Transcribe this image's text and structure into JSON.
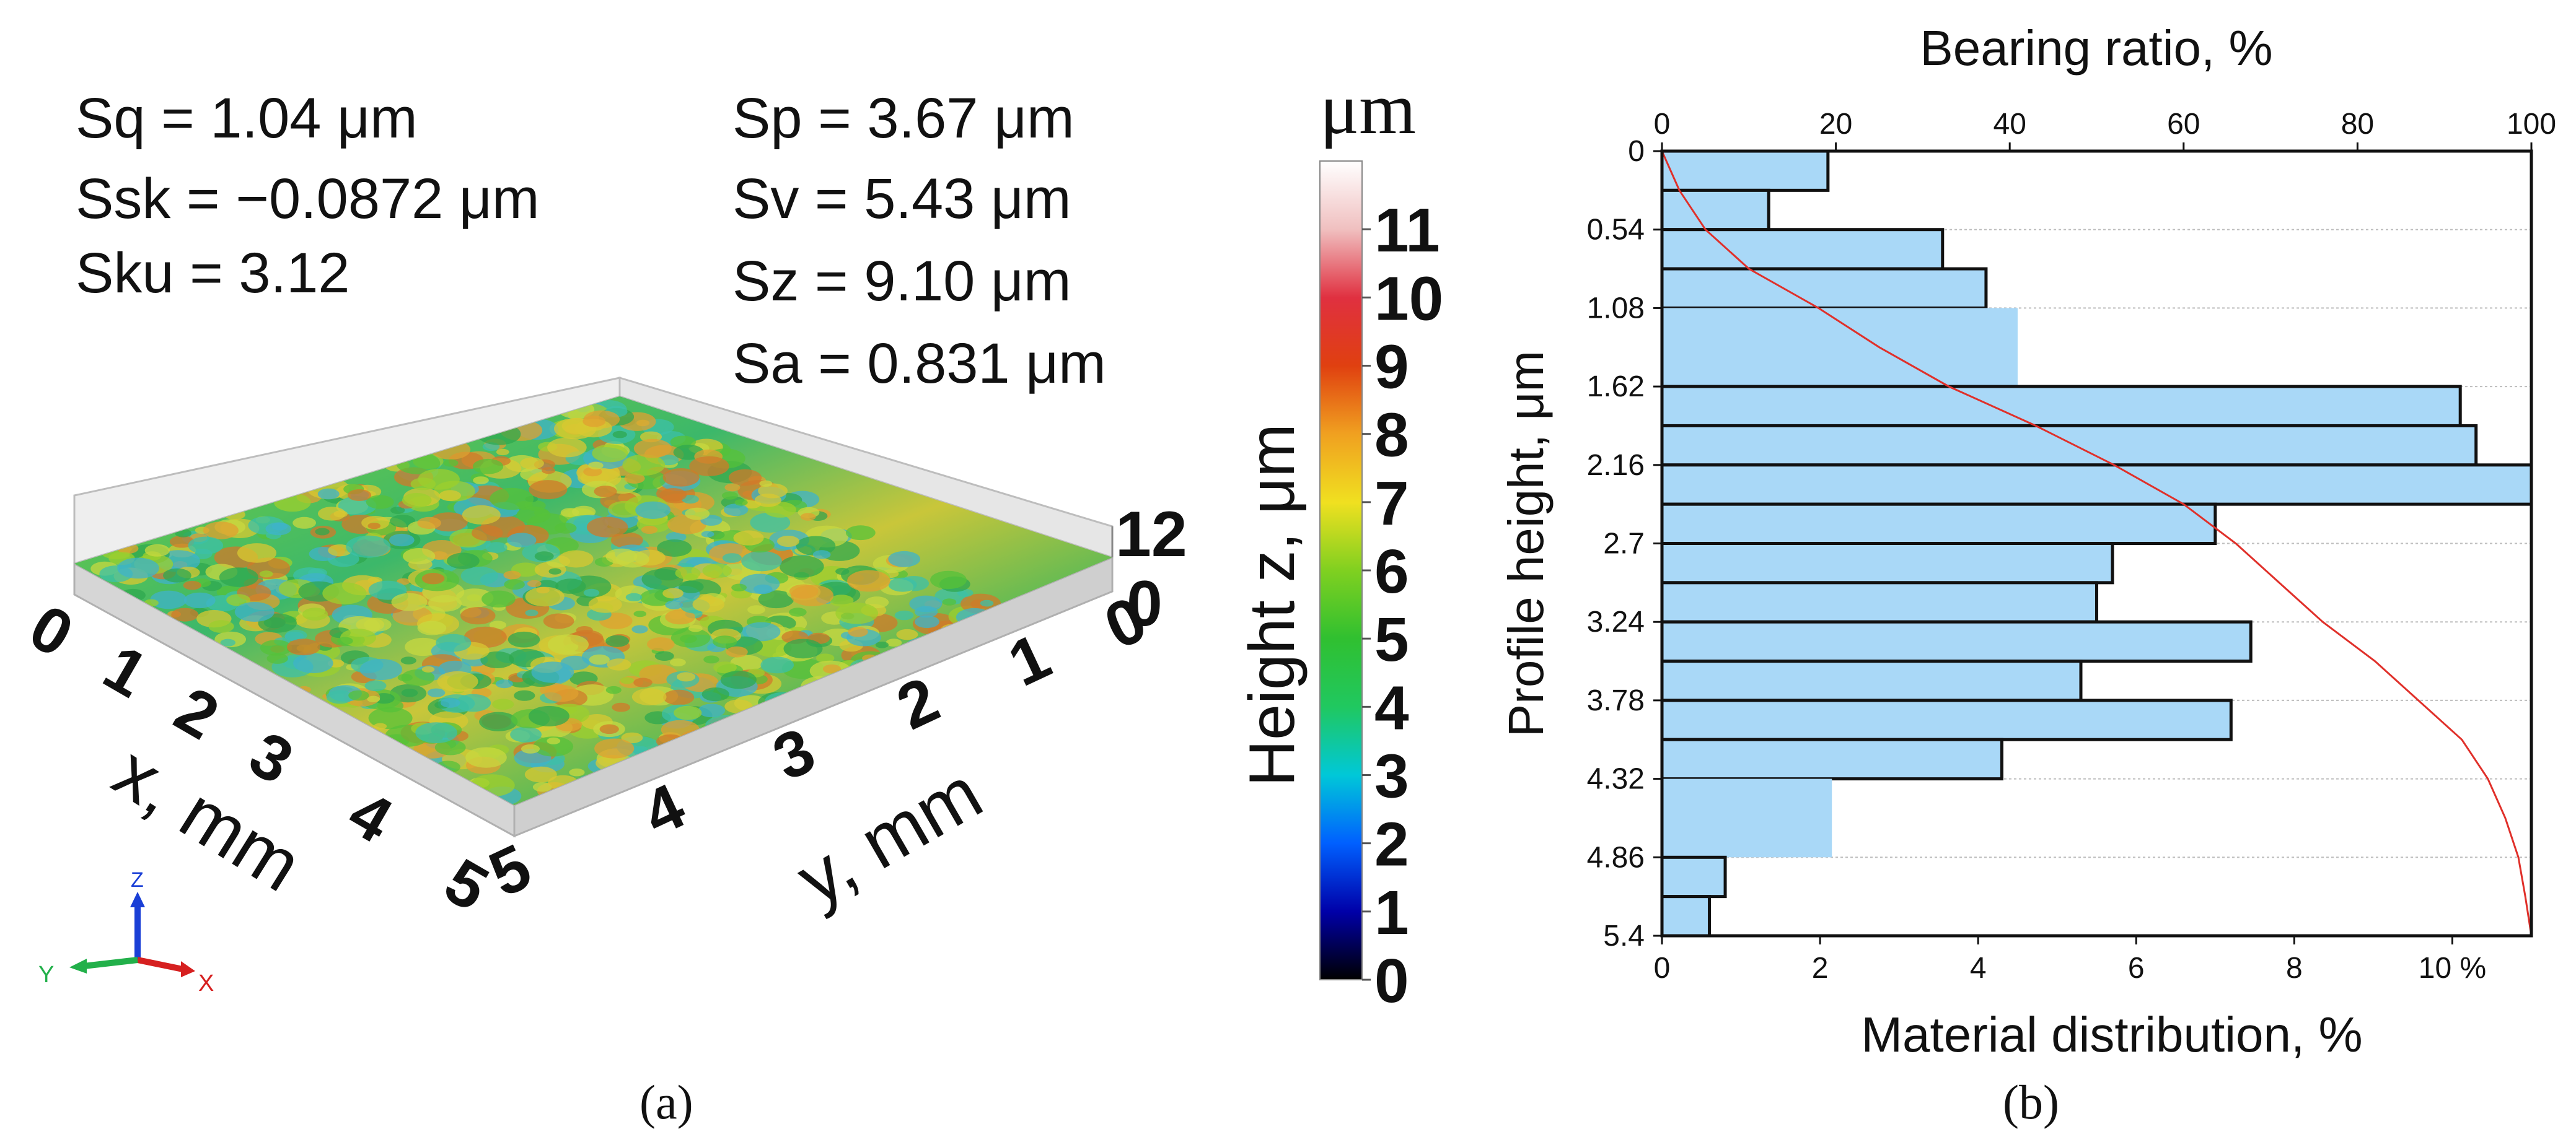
{
  "panel_a": {
    "stats_left": [
      "Sq = 1.04 μm",
      "Ssk = −0.0872 μm",
      "Sku = 3.12"
    ],
    "stats_right": [
      "Sp = 3.67 μm",
      "Sv = 5.43 μm",
      "Sz = 9.10 μm",
      "Sa = 0.831 μm"
    ],
    "colorbar": {
      "unit": "μm",
      "label": "Height z, μm",
      "ticks": [
        "0",
        "1",
        "2",
        "3",
        "4",
        "5",
        "6",
        "7",
        "8",
        "9",
        "10",
        "11"
      ],
      "colors": [
        "#000000",
        "#0000a8",
        "#0060ff",
        "#00c8d8",
        "#20c860",
        "#30c030",
        "#80d020",
        "#f0e020",
        "#f0a020",
        "#e04010",
        "#e03040",
        "#f0c0c0",
        "#ffffff"
      ]
    },
    "x_axis": {
      "label": "x, mm",
      "ticks": [
        "0",
        "1",
        "2",
        "3",
        "4",
        "5"
      ]
    },
    "y_axis": {
      "label": "y, mm",
      "ticks": [
        "5",
        "4",
        "3",
        "2",
        "1",
        "0"
      ]
    },
    "z_axis": {
      "ticks": [
        "12",
        "0"
      ]
    },
    "triad": {
      "z": "Z",
      "y": "Y",
      "x": "X"
    },
    "caption": "(a)"
  },
  "chart_data": {
    "type": "bar",
    "orientation": "horizontal",
    "title": "Bearing ratio, %",
    "xlabel": "Material distribution, %",
    "ylabel": "Profile height, μm",
    "bottom_ticks": [
      "0",
      "2",
      "4",
      "6",
      "8",
      "10 %"
    ],
    "top_ticks": [
      "0",
      "20",
      "40",
      "60",
      "80",
      "100"
    ],
    "y_ticks": [
      "0",
      "0.54",
      "1.08",
      "1.62",
      "2.16",
      "2.7",
      "3.24",
      "3.78",
      "4.32",
      "4.86",
      "5.4"
    ],
    "xlim": [
      0,
      11
    ],
    "ylim": [
      0,
      5.4
    ],
    "bin_width": 0.27,
    "bins_start": [
      0,
      0.27,
      0.54,
      0.81,
      1.08,
      1.62,
      1.89,
      2.16,
      2.43,
      2.7,
      2.97,
      3.24,
      3.51,
      3.78,
      4.05,
      4.32,
      4.86,
      5.13
    ],
    "bins_end": [
      0.27,
      0.54,
      0.81,
      1.08,
      1.62,
      1.89,
      2.16,
      2.43,
      2.7,
      2.97,
      3.24,
      3.51,
      3.78,
      4.05,
      4.32,
      4.86,
      5.13,
      5.4
    ],
    "values": [
      2.1,
      1.35,
      3.55,
      4.1,
      4.5,
      10.1,
      10.3,
      11.0,
      7.0,
      5.7,
      5.5,
      7.45,
      5.3,
      7.2,
      4.3,
      2.15,
      0.8,
      0.6
    ],
    "outlined": [
      true,
      true,
      true,
      true,
      false,
      true,
      true,
      true,
      true,
      true,
      true,
      true,
      true,
      true,
      true,
      false,
      true,
      true
    ],
    "bearing_curve": {
      "name": "Bearing ratio",
      "color": "#e0302a",
      "height": [
        0,
        0.27,
        0.54,
        0.81,
        1.08,
        1.35,
        1.62,
        1.89,
        2.16,
        2.43,
        2.7,
        2.97,
        3.24,
        3.51,
        3.78,
        4.05,
        4.32,
        4.59,
        4.86,
        5.13,
        5.4
      ],
      "ratio": [
        0,
        2,
        5,
        10,
        18,
        25,
        33,
        43,
        52,
        60,
        66,
        71,
        76,
        82,
        87,
        92,
        95,
        97,
        98.5,
        99.3,
        100
      ]
    },
    "bar_color": "#a9d8f7",
    "caption": "(b)"
  }
}
